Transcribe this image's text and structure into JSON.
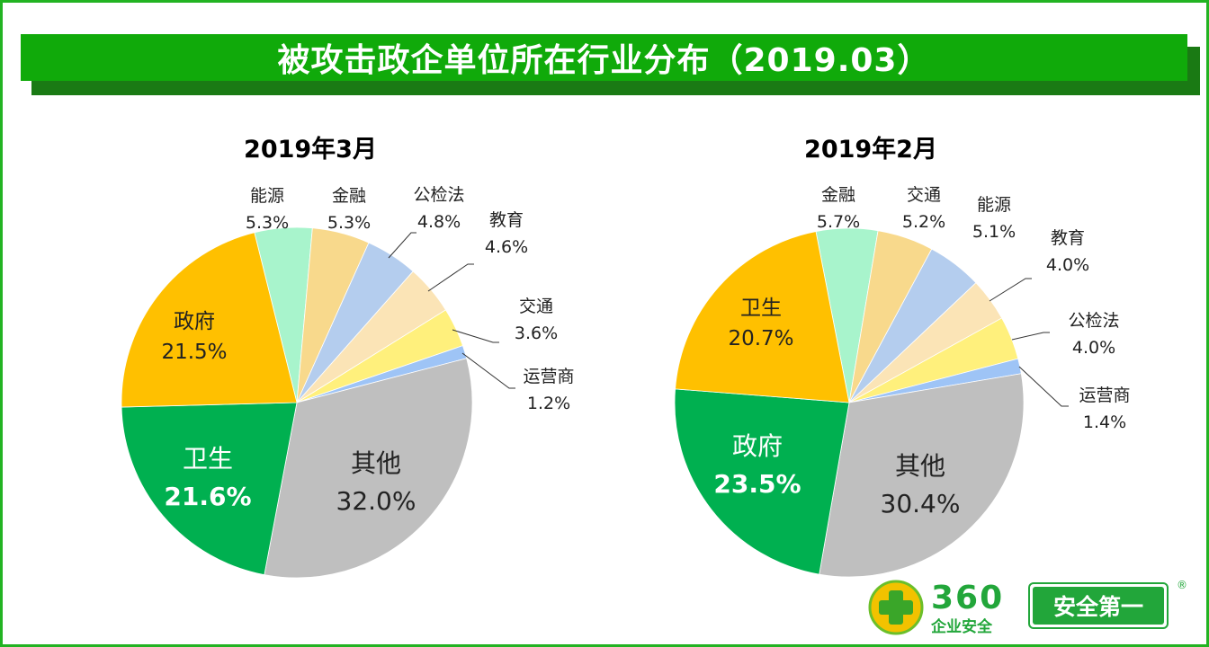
{
  "title": "被攻击政企单位所在行业分布（2019.03）",
  "chart_data": [
    {
      "type": "pie",
      "title": "2019年3月",
      "start_angle_deg": -14,
      "slices": [
        {
          "label": "能源",
          "value": 5.3,
          "pct": "5.3%",
          "color": "#a8f4cc"
        },
        {
          "label": "金融",
          "value": 5.3,
          "pct": "5.3%",
          "color": "#f8d98c"
        },
        {
          "label": "公检法",
          "value": 4.8,
          "pct": "4.8%",
          "color": "#b4cdee"
        },
        {
          "label": "教育",
          "value": 4.6,
          "pct": "4.6%",
          "color": "#fbe4b6"
        },
        {
          "label": "交通",
          "value": 3.6,
          "pct": "3.6%",
          "color": "#fff07c"
        },
        {
          "label": "运营商",
          "value": 1.2,
          "pct": "1.2%",
          "color": "#9ec4f6"
        },
        {
          "label": "其他",
          "value": 32.0,
          "pct": "32.0%",
          "color": "#bfbfbf"
        },
        {
          "label": "卫生",
          "value": 21.6,
          "pct": "21.6%",
          "color": "#00b050"
        },
        {
          "label": "政府",
          "value": 21.5,
          "pct": "21.5%",
          "color": "#ffc000"
        }
      ]
    },
    {
      "type": "pie",
      "title": "2019年2月",
      "start_angle_deg": -11,
      "slices": [
        {
          "label": "金融",
          "value": 5.7,
          "pct": "5.7%",
          "color": "#a8f4cc"
        },
        {
          "label": "交通",
          "value": 5.2,
          "pct": "5.2%",
          "color": "#f8d98c"
        },
        {
          "label": "能源",
          "value": 5.1,
          "pct": "5.1%",
          "color": "#b4cdee"
        },
        {
          "label": "教育",
          "value": 4.0,
          "pct": "4.0%",
          "color": "#fbe4b6"
        },
        {
          "label": "公检法",
          "value": 4.0,
          "pct": "4.0%",
          "color": "#fff07c"
        },
        {
          "label": "运营商",
          "value": 1.4,
          "pct": "1.4%",
          "color": "#9ec4f6"
        },
        {
          "label": "其他",
          "value": 30.4,
          "pct": "30.4%",
          "color": "#bfbfbf"
        },
        {
          "label": "政府",
          "value": 23.5,
          "pct": "23.5%",
          "color": "#00b050"
        },
        {
          "label": "卫生",
          "value": 20.7,
          "pct": "20.7%",
          "color": "#ffc000"
        }
      ]
    }
  ],
  "logo": {
    "brand": "360",
    "sub": "企业安全",
    "slogan": "安全第一",
    "reg": "®"
  }
}
